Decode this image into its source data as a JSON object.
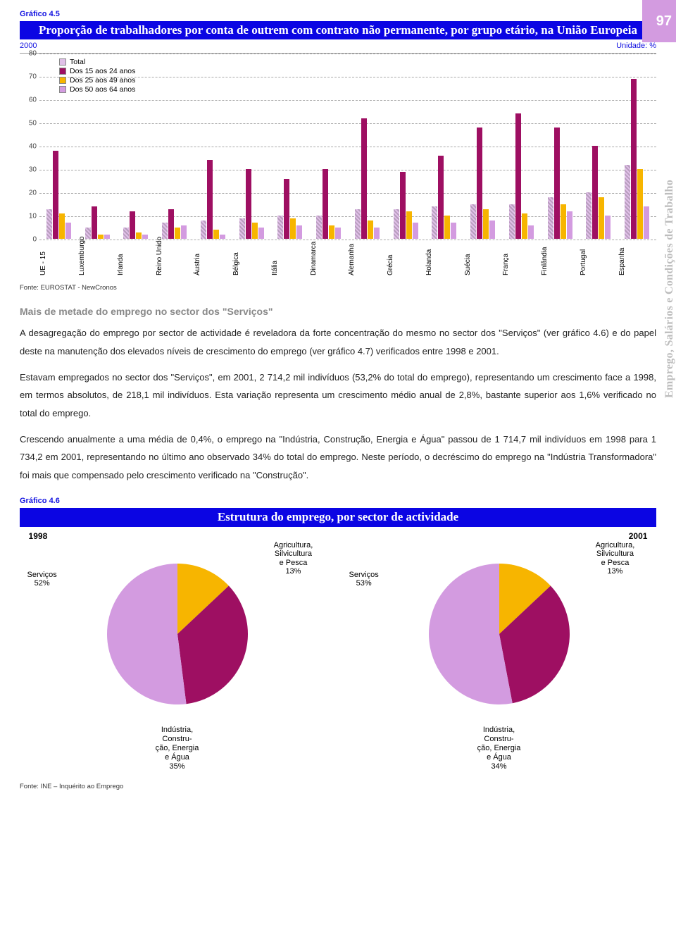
{
  "pageNumber": "97",
  "sideLabel": "Emprego, Salários e Condições de Trabalho",
  "chart1": {
    "label": "Gráfico 4.5",
    "title": "Proporção de trabalhadores por conta de outrem com contrato não permanente, por grupo etário, na União Europeia",
    "year": "2000",
    "unit": "Unidade: %",
    "ymax": 80,
    "ytick_step": 10,
    "colors": {
      "total": "#e0c0e8",
      "age1524": "#9e0f62",
      "age2549": "#f7b500",
      "age5064": "#d39be0",
      "total_hatch": true
    },
    "legend": [
      {
        "label": "Total",
        "color": "#e0c0e8"
      },
      {
        "label": "Dos 15 aos 24 anos",
        "color": "#9e0f62"
      },
      {
        "label": "Dos 25 aos 49 anos",
        "color": "#f7b500"
      },
      {
        "label": "Dos 50 aos 64 anos",
        "color": "#d39be0"
      }
    ],
    "categories": [
      "UE - 15",
      "Luxemburgo",
      "Irlanda",
      "Reino Unido",
      "Áustria",
      "Bélgica",
      "Itália",
      "Dinamarca",
      "Alemanha",
      "Grécia",
      "Holanda",
      "Suécia",
      "França",
      "Finlândia",
      "Portugal",
      "Espanha"
    ],
    "series": {
      "total": [
        13,
        5,
        5,
        7,
        8,
        9,
        10,
        10,
        13,
        13,
        14,
        15,
        15,
        18,
        20,
        32
      ],
      "age1524": [
        38,
        14,
        12,
        13,
        34,
        30,
        26,
        30,
        52,
        29,
        36,
        48,
        54,
        48,
        40,
        69
      ],
      "age2549": [
        11,
        2,
        3,
        5,
        4,
        7,
        9,
        6,
        8,
        12,
        10,
        13,
        11,
        15,
        18,
        30
      ],
      "age5064": [
        7,
        2,
        2,
        6,
        2,
        5,
        6,
        5,
        5,
        7,
        7,
        8,
        6,
        12,
        10,
        14
      ]
    },
    "fonte": "Fonte: EUROSTAT - NewCronos"
  },
  "sectionHead": "Mais de metade do emprego no sector dos \"Serviços\"",
  "paragraphs": [
    "A desagregação do emprego por sector de actividade é reveladora da forte concentração do mesmo no sector dos \"Serviços\" (ver gráfico 4.6) e do papel deste na manutenção dos elevados níveis de crescimento do emprego (ver gráfico 4.7) verificados entre 1998 e 2001.",
    "Estavam empregados no sector dos \"Serviços\", em 2001, 2 714,2 mil indivíduos (53,2% do total do emprego), representando um crescimento face a 1998, em termos absolutos, de 218,1 mil indivíduos. Esta variação representa um crescimento médio anual de 2,8%, bastante superior aos 1,6% verificado no total do emprego.",
    "Crescendo anualmente a uma média de 0,4%, o emprego na \"Indústria, Construção, Energia e Água\" passou de 1 714,7 mil indivíduos em 1998 para 1 734,2 em 2001, representando no último ano observado 34% do total do emprego. Neste período, o decréscimo do emprego na \"Indústria Transformadora\" foi mais que compensado pelo crescimento verificado na \"Construção\"."
  ],
  "chart2": {
    "label": "Gráfico 4.6",
    "title": "Estrutura do emprego, por sector de actividade",
    "colors": {
      "agri": "#f7b500",
      "ind": "#9e0f62",
      "serv": "#d39be0"
    },
    "pies": [
      {
        "year": "1998",
        "serv": 52,
        "agri": 13,
        "ind": 35,
        "serv_label": "Serviços 52%",
        "agri_label": "Agricultura, Silvicultura e Pesca 13%",
        "ind_label": "Indústria, Constru- ção, Energia e Água 35%"
      },
      {
        "year": "2001",
        "serv": 53,
        "agri": 13,
        "ind": 34,
        "serv_label": "Serviços 53%",
        "agri_label": "Agricultura, Silvicultura e Pesca 13%",
        "ind_label": "Indústria, Constru- ção, Energia e Água 34%"
      }
    ],
    "fonte": "Fonte: INE – Inquérito ao Emprego"
  }
}
